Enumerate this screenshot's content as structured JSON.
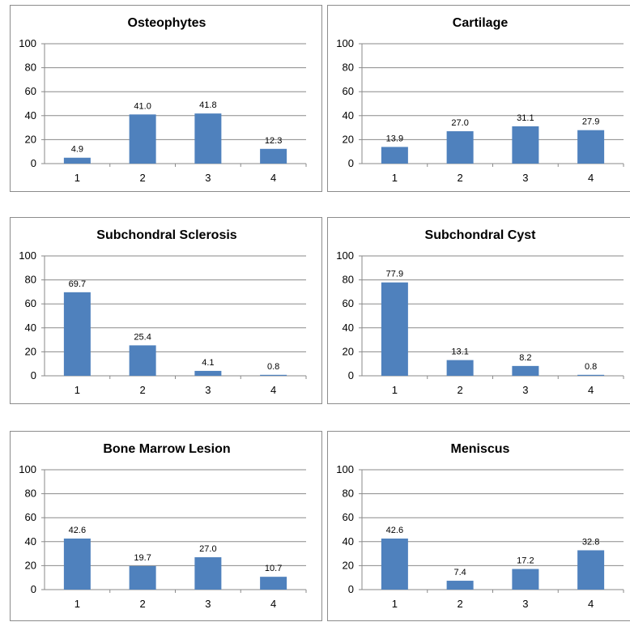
{
  "chart_data": [
    {
      "type": "bar",
      "title": "Osteophytes",
      "categories": [
        "1",
        "2",
        "3",
        "4"
      ],
      "values": [
        4.9,
        41.0,
        41.8,
        12.3
      ],
      "labels": [
        "4.9",
        "41.0",
        "41.8",
        "12.3"
      ],
      "ylim": [
        0,
        100
      ],
      "yticks": [
        "0",
        "20",
        "40",
        "60",
        "80",
        "100"
      ],
      "grid": true,
      "color": "#4f81bd"
    },
    {
      "type": "bar",
      "title": "Cartilage",
      "categories": [
        "1",
        "2",
        "3",
        "4"
      ],
      "values": [
        13.9,
        27.0,
        31.1,
        27.9
      ],
      "labels": [
        "13.9",
        "27.0",
        "31.1",
        "27.9"
      ],
      "ylim": [
        0,
        100
      ],
      "yticks": [
        "0",
        "20",
        "40",
        "60",
        "80",
        "100"
      ],
      "grid": true,
      "color": "#4f81bd"
    },
    {
      "type": "bar",
      "title": "Subchondral Sclerosis",
      "categories": [
        "1",
        "2",
        "3",
        "4"
      ],
      "values": [
        69.7,
        25.4,
        4.1,
        0.8
      ],
      "labels": [
        "69.7",
        "25.4",
        "4.1",
        "0.8"
      ],
      "ylim": [
        0,
        100
      ],
      "yticks": [
        "0",
        "20",
        "40",
        "60",
        "80",
        "100"
      ],
      "grid": true,
      "color": "#4f81bd"
    },
    {
      "type": "bar",
      "title": "Subchondral Cyst",
      "categories": [
        "1",
        "2",
        "3",
        "4"
      ],
      "values": [
        77.9,
        13.1,
        8.2,
        0.8
      ],
      "labels": [
        "77.9",
        "13.1",
        "8.2",
        "0.8"
      ],
      "ylim": [
        0,
        100
      ],
      "yticks": [
        "0",
        "20",
        "40",
        "60",
        "80",
        "100"
      ],
      "grid": true,
      "color": "#4f81bd"
    },
    {
      "type": "bar",
      "title": "Bone Marrow Lesion",
      "categories": [
        "1",
        "2",
        "3",
        "4"
      ],
      "values": [
        42.6,
        19.7,
        27.0,
        10.7
      ],
      "labels": [
        "42.6",
        "19.7",
        "27.0",
        "10.7"
      ],
      "ylim": [
        0,
        100
      ],
      "yticks": [
        "0",
        "20",
        "40",
        "60",
        "80",
        "100"
      ],
      "grid": true,
      "color": "#4f81bd"
    },
    {
      "type": "bar",
      "title": "Meniscus",
      "categories": [
        "1",
        "2",
        "3",
        "4"
      ],
      "values": [
        42.6,
        7.4,
        17.2,
        32.8
      ],
      "labels": [
        "42.6",
        "7.4",
        "17.2",
        "32.8"
      ],
      "ylim": [
        0,
        100
      ],
      "yticks": [
        "0",
        "20",
        "40",
        "60",
        "80",
        "100"
      ],
      "grid": true,
      "color": "#4f81bd"
    }
  ]
}
